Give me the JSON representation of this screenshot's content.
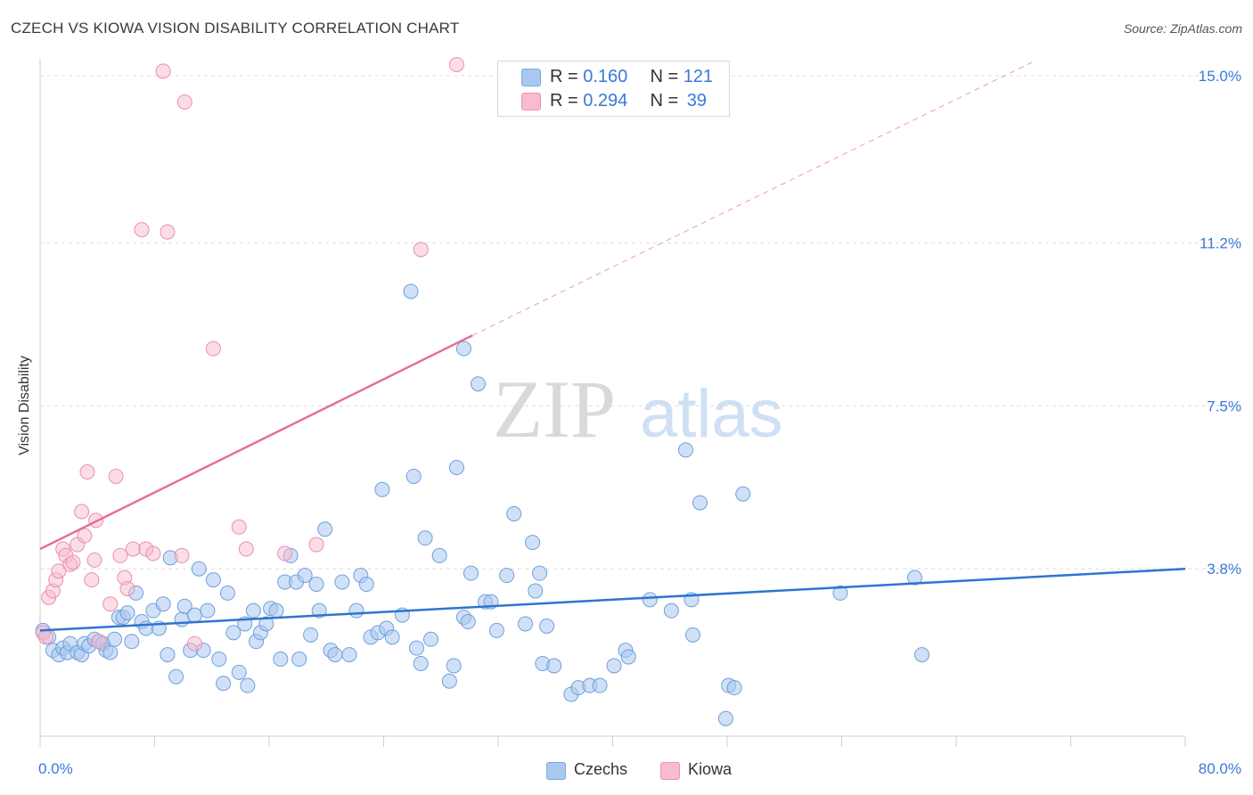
{
  "header": {
    "title": "CZECH VS KIOWA VISION DISABILITY CORRELATION CHART",
    "source": "Source: ZipAtlas.com"
  },
  "watermark": {
    "zip": "ZIP",
    "atlas": "atlas"
  },
  "legend": {
    "series": [
      {
        "name": "Czechs",
        "r_label": "R =",
        "r_value": "0.160",
        "n_label": "N =",
        "n_value": "121",
        "fill": "#a9c8f0",
        "stroke": "#7aa7e0"
      },
      {
        "name": "Kiowa",
        "r_label": "R =",
        "r_value": "0.294",
        "n_label": "N =",
        "n_value": "39",
        "fill": "#f7bccd",
        "stroke": "#ef93ad"
      }
    ]
  },
  "colors": {
    "czech_point_fill": "#a9c8f0",
    "czech_point_stroke": "#6f9fdc",
    "czech_line": "#2f74d0",
    "kiowa_point_fill": "#f7bccd",
    "kiowa_point_stroke": "#ea8fab",
    "kiowa_line": "#e56f97",
    "grid": "#dedede",
    "axis_text": "#3b78d8"
  },
  "chart_data": {
    "type": "scatter",
    "title": "CZECH VS KIOWA VISION DISABILITY CORRELATION CHART",
    "ylabel": "Vision Disability",
    "xlabel": "",
    "xlim": [
      0,
      80
    ],
    "ylim": [
      0,
      15.3
    ],
    "x_tick_labels": [
      "0.0%",
      "80.0%"
    ],
    "y_ticks": [
      3.8,
      7.5,
      11.2,
      15.0
    ],
    "y_tick_labels": [
      "3.8%",
      "7.5%",
      "11.2%",
      "15.0%"
    ],
    "grid": "horizontal dashed",
    "legend_position": "top-center",
    "series": [
      {
        "name": "Czechs",
        "trend": {
          "x": [
            0,
            80
          ],
          "y": [
            2.4,
            3.8
          ]
        },
        "points": [
          [
            0.2,
            2.4
          ],
          [
            0.6,
            2.25
          ],
          [
            0.9,
            1.95
          ],
          [
            1.3,
            1.85
          ],
          [
            1.6,
            2.0
          ],
          [
            1.9,
            1.9
          ],
          [
            2.1,
            2.1
          ],
          [
            2.6,
            1.9
          ],
          [
            2.9,
            1.85
          ],
          [
            3.1,
            2.1
          ],
          [
            3.4,
            2.05
          ],
          [
            3.8,
            2.2
          ],
          [
            4.1,
            2.15
          ],
          [
            4.4,
            2.1
          ],
          [
            4.6,
            1.95
          ],
          [
            4.9,
            1.9
          ],
          [
            5.2,
            2.2
          ],
          [
            5.5,
            2.7
          ],
          [
            5.8,
            2.7
          ],
          [
            6.1,
            2.8
          ],
          [
            6.4,
            2.15
          ],
          [
            6.7,
            3.25
          ],
          [
            7.1,
            2.6
          ],
          [
            7.4,
            2.45
          ],
          [
            7.9,
            2.85
          ],
          [
            8.3,
            2.45
          ],
          [
            8.6,
            3.0
          ],
          [
            8.9,
            1.85
          ],
          [
            9.1,
            4.05
          ],
          [
            9.5,
            1.35
          ],
          [
            9.9,
            2.65
          ],
          [
            10.1,
            2.95
          ],
          [
            10.5,
            1.95
          ],
          [
            10.8,
            2.75
          ],
          [
            11.1,
            3.8
          ],
          [
            11.4,
            1.95
          ],
          [
            11.7,
            2.85
          ],
          [
            12.1,
            3.55
          ],
          [
            12.5,
            1.75
          ],
          [
            12.8,
            1.2
          ],
          [
            13.1,
            3.25
          ],
          [
            13.5,
            2.35
          ],
          [
            13.9,
            1.45
          ],
          [
            14.3,
            2.55
          ],
          [
            14.5,
            1.15
          ],
          [
            14.9,
            2.85
          ],
          [
            15.1,
            2.15
          ],
          [
            15.4,
            2.35
          ],
          [
            15.8,
            2.55
          ],
          [
            16.1,
            2.9
          ],
          [
            16.5,
            2.85
          ],
          [
            16.8,
            1.75
          ],
          [
            17.1,
            3.5
          ],
          [
            17.5,
            4.1
          ],
          [
            17.9,
            3.5
          ],
          [
            18.1,
            1.75
          ],
          [
            18.5,
            3.65
          ],
          [
            18.9,
            2.3
          ],
          [
            19.3,
            3.45
          ],
          [
            19.5,
            2.85
          ],
          [
            19.9,
            4.7
          ],
          [
            20.3,
            1.95
          ],
          [
            20.6,
            1.85
          ],
          [
            21.1,
            3.5
          ],
          [
            21.6,
            1.85
          ],
          [
            22.1,
            2.85
          ],
          [
            22.4,
            3.65
          ],
          [
            22.8,
            3.45
          ],
          [
            23.1,
            2.25
          ],
          [
            23.6,
            2.35
          ],
          [
            23.9,
            5.6
          ],
          [
            24.2,
            2.45
          ],
          [
            24.6,
            2.25
          ],
          [
            25.3,
            2.75
          ],
          [
            25.9,
            10.1
          ],
          [
            26.1,
            5.9
          ],
          [
            26.3,
            2.0
          ],
          [
            26.6,
            1.65
          ],
          [
            26.9,
            4.5
          ],
          [
            27.3,
            2.2
          ],
          [
            27.9,
            4.1
          ],
          [
            28.6,
            1.25
          ],
          [
            28.9,
            1.6
          ],
          [
            29.1,
            6.1
          ],
          [
            29.6,
            8.8
          ],
          [
            29.6,
            2.7
          ],
          [
            29.9,
            2.6
          ],
          [
            30.1,
            3.7
          ],
          [
            30.6,
            8.0
          ],
          [
            31.1,
            3.05
          ],
          [
            31.5,
            3.05
          ],
          [
            31.9,
            2.4
          ],
          [
            32.6,
            3.65
          ],
          [
            33.1,
            5.05
          ],
          [
            33.9,
            2.55
          ],
          [
            34.4,
            4.4
          ],
          [
            34.6,
            3.3
          ],
          [
            34.9,
            3.7
          ],
          [
            35.1,
            1.65
          ],
          [
            35.4,
            2.5
          ],
          [
            35.9,
            1.6
          ],
          [
            37.1,
            0.95
          ],
          [
            37.6,
            1.1
          ],
          [
            38.4,
            1.15
          ],
          [
            39.1,
            1.15
          ],
          [
            40.1,
            1.6
          ],
          [
            40.9,
            1.95
          ],
          [
            41.1,
            1.8
          ],
          [
            42.6,
            3.1
          ],
          [
            44.1,
            2.85
          ],
          [
            45.1,
            6.5
          ],
          [
            45.5,
            3.1
          ],
          [
            45.6,
            2.3
          ],
          [
            46.1,
            5.3
          ],
          [
            47.9,
            0.4
          ],
          [
            48.1,
            1.15
          ],
          [
            48.5,
            1.1
          ],
          [
            49.1,
            5.5
          ],
          [
            55.9,
            3.25
          ],
          [
            61.1,
            3.6
          ],
          [
            61.6,
            1.85
          ]
        ]
      },
      {
        "name": "Kiowa",
        "trend": {
          "x": [
            0,
            30.2
          ],
          "y": [
            4.25,
            9.1
          ]
        },
        "trend_extension": {
          "x": [
            30.2,
            80
          ],
          "y": [
            9.1,
            17.0
          ]
        },
        "points": [
          [
            0.2,
            2.35
          ],
          [
            0.4,
            2.25
          ],
          [
            0.6,
            3.15
          ],
          [
            0.9,
            3.3
          ],
          [
            1.1,
            3.55
          ],
          [
            1.3,
            3.75
          ],
          [
            1.6,
            4.25
          ],
          [
            1.8,
            4.1
          ],
          [
            2.1,
            3.9
          ],
          [
            2.3,
            3.95
          ],
          [
            2.6,
            4.35
          ],
          [
            2.9,
            5.1
          ],
          [
            3.1,
            4.55
          ],
          [
            3.3,
            6.0
          ],
          [
            3.6,
            3.55
          ],
          [
            3.8,
            4.0
          ],
          [
            3.9,
            4.9
          ],
          [
            4.1,
            2.15
          ],
          [
            4.9,
            3.0
          ],
          [
            5.3,
            5.9
          ],
          [
            5.6,
            4.1
          ],
          [
            5.9,
            3.6
          ],
          [
            6.1,
            3.35
          ],
          [
            6.5,
            4.25
          ],
          [
            7.1,
            11.5
          ],
          [
            7.4,
            4.25
          ],
          [
            7.9,
            4.15
          ],
          [
            8.6,
            15.1
          ],
          [
            8.9,
            11.45
          ],
          [
            9.9,
            4.1
          ],
          [
            10.1,
            14.4
          ],
          [
            10.8,
            2.1
          ],
          [
            12.1,
            8.8
          ],
          [
            13.9,
            4.75
          ],
          [
            14.4,
            4.25
          ],
          [
            17.1,
            4.15
          ],
          [
            19.3,
            4.35
          ],
          [
            26.6,
            11.05
          ],
          [
            29.1,
            15.25
          ]
        ]
      }
    ]
  }
}
